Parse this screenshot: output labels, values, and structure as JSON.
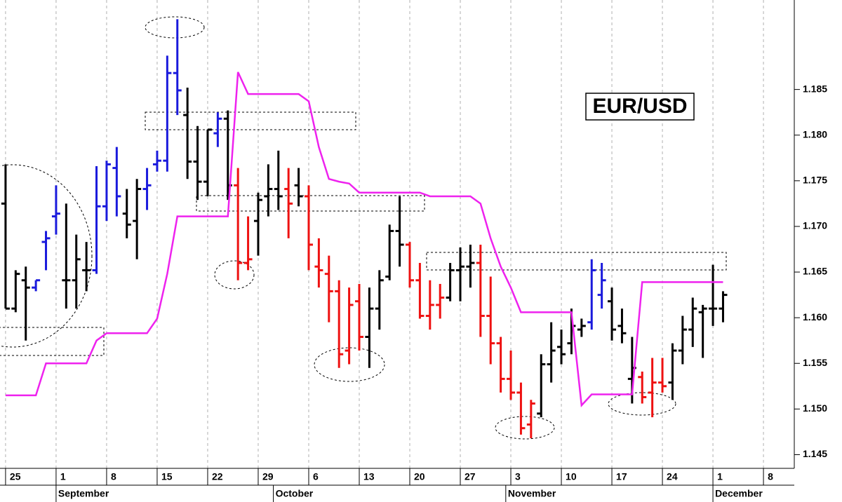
{
  "chart_data": {
    "type": "ohlc",
    "title": "EUR/USD",
    "open": [
      1.1725,
      1.161,
      1.1641,
      1.1633,
      1.1683,
      1.1711,
      1.1641,
      1.1641,
      1.1652,
      1.1652,
      1.1722,
      1.1764,
      1.1714,
      1.1706,
      1.1741,
      1.1768,
      1.1772,
      1.1868,
      1.1822,
      1.1771,
      1.1749,
      1.1802,
      1.1818,
      1.1745,
      1.166,
      1.1706,
      1.1733,
      1.1741,
      1.1741,
      1.1745,
      1.1733,
      1.1656,
      1.1648,
      1.1629,
      1.1564,
      1.1618,
      1.1579,
      1.161,
      1.1645,
      1.1695,
      1.168,
      1.1641,
      1.1602,
      1.1614,
      1.1622,
      1.1652,
      1.1656,
      1.166,
      1.1602,
      1.1572,
      1.1533,
      1.1518,
      1.1483,
      1.1495,
      1.1549,
      1.1568,
      1.1572,
      1.1587,
      1.1595,
      1.1625,
      1.1618,
      1.1591,
      1.1533,
      1.1535,
      1.1518,
      1.1529,
      1.1529,
      1.1564,
      1.1587,
      1.1606,
      1.161,
      1.161
    ],
    "high": [
      1.1768,
      1.1652,
      1.1656,
      1.1641,
      1.1695,
      1.1745,
      1.1725,
      1.1691,
      1.1683,
      1.1766,
      1.1772,
      1.1787,
      1.1741,
      1.1752,
      1.1764,
      1.1783,
      1.1887,
      1.1927,
      1.1852,
      1.181,
      1.1806,
      1.1825,
      1.1827,
      1.1764,
      1.1711,
      1.1737,
      1.1768,
      1.1783,
      1.1764,
      1.1764,
      1.1745,
      1.1687,
      1.1668,
      1.1641,
      1.1633,
      1.1637,
      1.1633,
      1.1652,
      1.1702,
      1.1733,
      1.1683,
      1.166,
      1.1641,
      1.1637,
      1.166,
      1.1677,
      1.168,
      1.168,
      1.1645,
      1.1579,
      1.1564,
      1.1529,
      1.151,
      1.156,
      1.1595,
      1.1587,
      1.161,
      1.1599,
      1.1664,
      1.166,
      1.1633,
      1.161,
      1.1579,
      1.1541,
      1.1556,
      1.1556,
      1.1572,
      1.1602,
      1.1622,
      1.1614,
      1.1658,
      1.1629
    ],
    "low": [
      1.161,
      1.1606,
      1.1575,
      1.1629,
      1.1652,
      1.1691,
      1.161,
      1.161,
      1.1629,
      1.1648,
      1.1706,
      1.1711,
      1.1687,
      1.1664,
      1.1718,
      1.176,
      1.176,
      1.1822,
      1.1752,
      1.1729,
      1.1733,
      1.1787,
      1.1729,
      1.1641,
      1.1652,
      1.1668,
      1.1711,
      1.1718,
      1.1687,
      1.1722,
      1.1652,
      1.1633,
      1.1595,
      1.1545,
      1.1549,
      1.1564,
      1.1545,
      1.1587,
      1.1641,
      1.1656,
      1.1633,
      1.1599,
      1.1587,
      1.1599,
      1.1618,
      1.1618,
      1.1633,
      1.1579,
      1.1549,
      1.1518,
      1.151,
      1.1472,
      1.1468,
      1.1491,
      1.1529,
      1.1549,
      1.156,
      1.1579,
      1.1587,
      1.161,
      1.1575,
      1.1572,
      1.1506,
      1.1506,
      1.1491,
      1.1518,
      1.151,
      1.1549,
      1.1568,
      1.1556,
      1.1591,
      1.1595
    ],
    "close": [
      1.161,
      1.1648,
      1.1633,
      1.1641,
      1.1687,
      1.1714,
      1.1641,
      1.1664,
      1.1652,
      1.1722,
      1.1768,
      1.1733,
      1.1702,
      1.1741,
      1.1745,
      1.1772,
      1.1868,
      1.1849,
      1.1771,
      1.1749,
      1.1806,
      1.1818,
      1.1745,
      1.166,
      1.1664,
      1.1729,
      1.1741,
      1.1733,
      1.1725,
      1.1733,
      1.168,
      1.1652,
      1.1629,
      1.156,
      1.1614,
      1.1579,
      1.161,
      1.1641,
      1.1695,
      1.168,
      1.1641,
      1.1602,
      1.1614,
      1.1622,
      1.1652,
      1.1656,
      1.166,
      1.1602,
      1.1572,
      1.1533,
      1.1518,
      1.1479,
      1.1506,
      1.1549,
      1.1564,
      1.156,
      1.1591,
      1.1591,
      1.1652,
      1.1641,
      1.1587,
      1.1583,
      1.1545,
      1.1513,
      1.1529,
      1.1525,
      1.1564,
      1.1587,
      1.161,
      1.161,
      1.161,
      1.1625
    ],
    "bar_colors": [
      "#000000",
      "#000000",
      "#000000",
      "#1a1adc",
      "#1a1adc",
      "#1a1adc",
      "#000000",
      "#000000",
      "#000000",
      "#1a1adc",
      "#1a1adc",
      "#1a1adc",
      "#000000",
      "#000000",
      "#1a1adc",
      "#1a1adc",
      "#1a1adc",
      "#1a1adc",
      "#000000",
      "#000000",
      "#000000",
      "#1a1adc",
      "#000000",
      "#ee1111",
      "#ee1111",
      "#000000",
      "#000000",
      "#000000",
      "#ee1111",
      "#000000",
      "#ee1111",
      "#ee1111",
      "#ee1111",
      "#ee1111",
      "#ee1111",
      "#ee1111",
      "#000000",
      "#000000",
      "#000000",
      "#000000",
      "#ee1111",
      "#ee1111",
      "#ee1111",
      "#ee1111",
      "#000000",
      "#000000",
      "#000000",
      "#ee1111",
      "#ee1111",
      "#ee1111",
      "#ee1111",
      "#ee1111",
      "#ee1111",
      "#000000",
      "#000000",
      "#000000",
      "#000000",
      "#000000",
      "#1a1adc",
      "#1a1adc",
      "#000000",
      "#000000",
      "#000000",
      "#ee1111",
      "#ee1111",
      "#ee1111",
      "#000000",
      "#000000",
      "#000000",
      "#000000",
      "#000000",
      "#000000"
    ],
    "overlay": {
      "color": "#ee22ee",
      "values": [
        1.1515,
        1.1515,
        1.1515,
        1.1515,
        1.155,
        1.155,
        1.155,
        1.155,
        1.155,
        1.1575,
        1.1583,
        1.1583,
        1.1583,
        1.1583,
        1.1583,
        1.1599,
        1.1648,
        1.1711,
        1.1711,
        1.1711,
        1.1711,
        1.1711,
        1.1711,
        1.1869,
        1.1845,
        1.1845,
        1.1845,
        1.1845,
        1.1845,
        1.1845,
        1.1837,
        1.1787,
        1.1752,
        1.1749,
        1.1747,
        1.1737,
        1.1737,
        1.1737,
        1.1737,
        1.1737,
        1.1737,
        1.1737,
        1.1733,
        1.1733,
        1.1733,
        1.1733,
        1.1733,
        1.1725,
        1.1687,
        1.1656,
        1.1633,
        1.1606,
        1.1606,
        1.1606,
        1.1606,
        1.1606,
        1.1606,
        1.1504,
        1.1516,
        1.1516,
        1.1516,
        1.1516,
        1.1516,
        1.1639,
        1.1639,
        1.1639,
        1.1639,
        1.1639,
        1.1639,
        1.1639,
        1.1639,
        1.1639
      ]
    },
    "xlim": [
      -0.55,
      78.05
    ],
    "xticks": [
      {
        "value": 0,
        "label": "25"
      },
      {
        "value": 5,
        "label": "1"
      },
      {
        "value": 10,
        "label": "8"
      },
      {
        "value": 15,
        "label": "15"
      },
      {
        "value": 20,
        "label": "22"
      },
      {
        "value": 25,
        "label": "29"
      },
      {
        "value": 30,
        "label": "6"
      },
      {
        "value": 35,
        "label": "13"
      },
      {
        "value": 40,
        "label": "20"
      },
      {
        "value": 45,
        "label": "27"
      },
      {
        "value": 50,
        "label": "3"
      },
      {
        "value": 55,
        "label": "10"
      },
      {
        "value": 60,
        "label": "17"
      },
      {
        "value": 65,
        "label": "24"
      },
      {
        "value": 70,
        "label": "1"
      },
      {
        "value": 75,
        "label": "8"
      }
    ],
    "month_ticks": [
      {
        "value": 5,
        "label": "September"
      },
      {
        "value": 26.5,
        "label": "October"
      },
      {
        "value": 49.5,
        "label": "November"
      },
      {
        "value": 70,
        "label": "December"
      }
    ],
    "ylim": [
      1.1435,
      1.1948
    ],
    "yticks": [
      1.145,
      {
        "value": 1.15,
        "label": "1.150"
      },
      1.155,
      {
        "value": 1.16,
        "label": "1.160"
      },
      1.165,
      {
        "value": 1.17,
        "label": "1.170"
      },
      1.175,
      {
        "value": 1.18,
        "label": "1.180"
      },
      1.185
    ],
    "grid": true
  }
}
